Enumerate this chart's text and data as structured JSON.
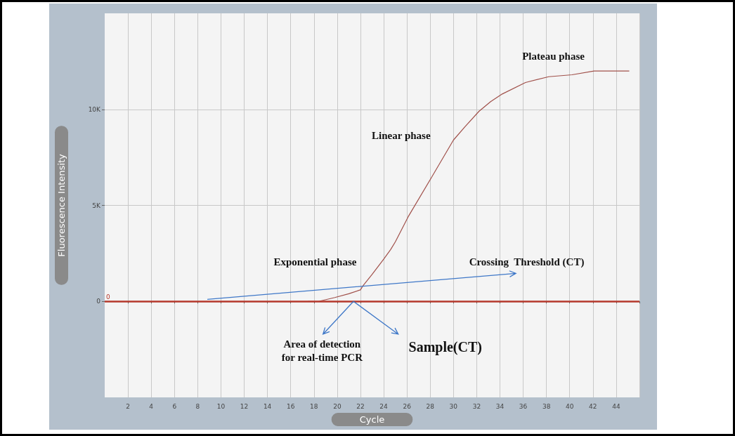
{
  "chart_data": {
    "type": "line",
    "xlabel": "Cycle",
    "ylabel": "Fluorescence Intensity",
    "series": [
      {
        "color": "#a0504a",
        "x": [
          17.5,
          18.4,
          19.8,
          21,
          22,
          22.2,
          23,
          24,
          24.6,
          25,
          26.1,
          28.06,
          30,
          31,
          32.2,
          33.2,
          34.2,
          36.2,
          38.2,
          40.2,
          42.1,
          45.1
        ],
        "values": [
          0,
          0,
          200,
          400,
          600,
          800,
          1400,
          2200,
          2700,
          3100,
          4400,
          6400,
          8400,
          9100,
          9900,
          10400,
          10800,
          11400,
          11700,
          11800,
          12000,
          12000
        ]
      }
    ],
    "xlim": [
      0,
      46
    ],
    "xticks": [
      2,
      4,
      6,
      8,
      10,
      12,
      14,
      16,
      18,
      20,
      22,
      24,
      26,
      28,
      30,
      32,
      34,
      36,
      38,
      40,
      42,
      44,
      {
        "value": 46,
        "label": null
      }
    ],
    "ylim": [
      -5000,
      15000
    ],
    "yticks": [
      0,
      {
        "value": 5000,
        "label": "5K"
      },
      {
        "value": 10000,
        "label": "10K"
      }
    ],
    "grid": true,
    "marker": "none",
    "line_style": "solid",
    "ref_lines": [
      {
        "axis": "y",
        "value": 0,
        "label": "0",
        "color": "#b5382c"
      }
    ],
    "annotations": [
      "Plateau phase",
      "Linear phase",
      "Exponential phase",
      "Crossing  Threshold (CT)",
      {
        "text": "Area of detection\nfor real-time PCR",
        "x": 21.4,
        "y": 0
      },
      {
        "text": "Sample(CT)",
        "x": 21.4,
        "y": 0
      }
    ]
  }
}
